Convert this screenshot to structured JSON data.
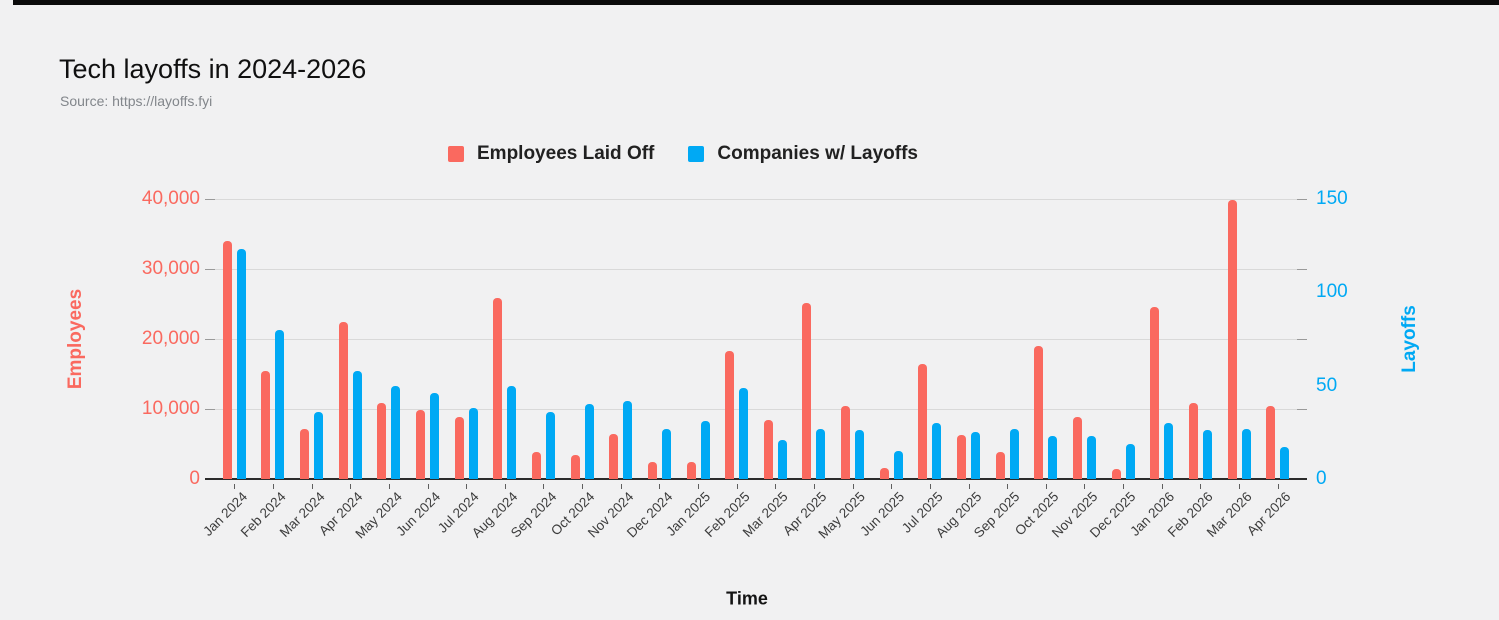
{
  "header": {
    "title": "Tech layoffs in 2024-2026",
    "source": "Source: https://layoffs.fyi"
  },
  "legend": {
    "items": [
      {
        "label": "Employees Laid Off",
        "color": "#FA695F"
      },
      {
        "label": "Companies w/ Layoffs",
        "color": "#00A9F4"
      }
    ]
  },
  "colors": {
    "employees_accent": "#FA695F",
    "companies_accent": "#00A9F4",
    "gridline": "#d9d9d9",
    "baseline": "#2b2b2b",
    "background": "#f1f1f2"
  },
  "chart_data": {
    "type": "bar",
    "title": "Tech layoffs in 2024-2026",
    "subtitle": "Source: https://layoffs.fyi",
    "xlabel": "Time",
    "grid": true,
    "legend_position": "top",
    "categories": [
      "Jan 2024",
      "Feb 2024",
      "Mar 2024",
      "Apr 2024",
      "May 2024",
      "Jun 2024",
      "Jul 2024",
      "Aug 2024",
      "Sep 2024",
      "Oct 2024",
      "Nov 2024",
      "Dec 2024",
      "Jan 2025",
      "Feb 2025",
      "Mar 2025",
      "Apr 2025",
      "May 2025",
      "Jun 2025",
      "Jul 2025",
      "Aug 2025",
      "Sep 2025",
      "Oct 2025",
      "Nov 2025",
      "Dec 2025",
      "Jan 2026",
      "Feb 2026",
      "Mar 2026",
      "Apr 2026"
    ],
    "series": [
      {
        "name": "Employees Laid Off",
        "axis": "left",
        "color": "#FA695F",
        "values": [
          34000,
          15400,
          7100,
          22400,
          10800,
          9900,
          8800,
          25800,
          3900,
          3500,
          6500,
          2400,
          2400,
          18300,
          8500,
          25100,
          10400,
          1600,
          16400,
          6300,
          3900,
          19000,
          8800,
          1400,
          24600,
          10800,
          39900,
          10500
        ]
      },
      {
        "name": "Companies w/ Layoffs",
        "axis": "right",
        "color": "#00A9F4",
        "values": [
          123,
          80,
          36,
          58,
          50,
          46,
          38,
          50,
          36,
          40,
          42,
          27,
          31,
          49,
          21,
          27,
          26,
          15,
          30,
          25,
          27,
          23,
          23,
          19,
          30,
          26,
          27,
          17
        ]
      }
    ],
    "left_axis": {
      "title": "Employees",
      "min": 0,
      "max": 40000,
      "ticks": [
        0,
        10000,
        20000,
        30000,
        40000
      ],
      "tick_labels": [
        "0",
        "10,000",
        "20,000",
        "30,000",
        "40,000"
      ],
      "color": "#FA695F"
    },
    "right_axis": {
      "title": "Layoffs",
      "min": 0,
      "max": 150,
      "ticks": [
        0,
        50,
        100,
        150
      ],
      "tick_labels": [
        "0",
        "50",
        "100",
        "150"
      ],
      "color": "#00A9F4"
    }
  }
}
